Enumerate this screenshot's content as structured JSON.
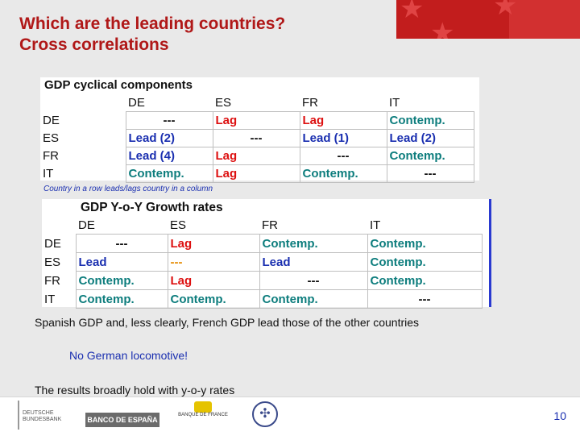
{
  "title": {
    "line1": "Which are the leading countries?",
    "line2": "Cross correlations"
  },
  "table1": {
    "title": "GDP cyclical components",
    "columns": [
      "DE",
      "ES",
      "FR",
      "IT"
    ],
    "rows": [
      {
        "label": "DE",
        "cells": [
          "---",
          "Lag",
          "Lag",
          "Contemp."
        ]
      },
      {
        "label": "ES",
        "cells": [
          "Lead (2)",
          "---",
          "Lead (1)",
          "Lead (2)"
        ]
      },
      {
        "label": "FR",
        "cells": [
          "Lead (4)",
          "Lag",
          "---",
          "Contemp."
        ]
      },
      {
        "label": "IT",
        "cells": [
          "Contemp.",
          "Lag",
          "Contemp.",
          "---"
        ]
      }
    ]
  },
  "note": "Country in a row leads/lags country in a column",
  "table2": {
    "title": "GDP Y-o-Y Growth rates",
    "columns": [
      "DE",
      "ES",
      "FR",
      "IT"
    ],
    "rows": [
      {
        "label": "DE",
        "cells": [
          "---",
          "Lag",
          "Contemp.",
          "Contemp."
        ]
      },
      {
        "label": "ES",
        "cells": [
          "Lead",
          "---",
          "Lead",
          "Contemp."
        ]
      },
      {
        "label": "FR",
        "cells": [
          "Contemp.",
          "Lag",
          "---",
          "Contemp."
        ]
      },
      {
        "label": "IT",
        "cells": [
          "Contemp.",
          "Contemp.",
          "Contemp.",
          "---"
        ]
      }
    ]
  },
  "sentence1": "Spanish GDP and, less clearly, French GDP lead those of the other countries",
  "sentence2": "No German locomotive!",
  "sentence3": "The results broadly hold with y-o-y rates",
  "footer": {
    "logo1": "DEUTSCHE BUNDESBANK",
    "logo2": "BANCO DE ESPAÑA",
    "logo3": "BANQUE DE FRANCE",
    "page": "10"
  },
  "colors": {
    "title": "#b01818",
    "lead": "#1a2fb0",
    "lag": "#dd1111",
    "contemp": "#0d7d7d"
  }
}
